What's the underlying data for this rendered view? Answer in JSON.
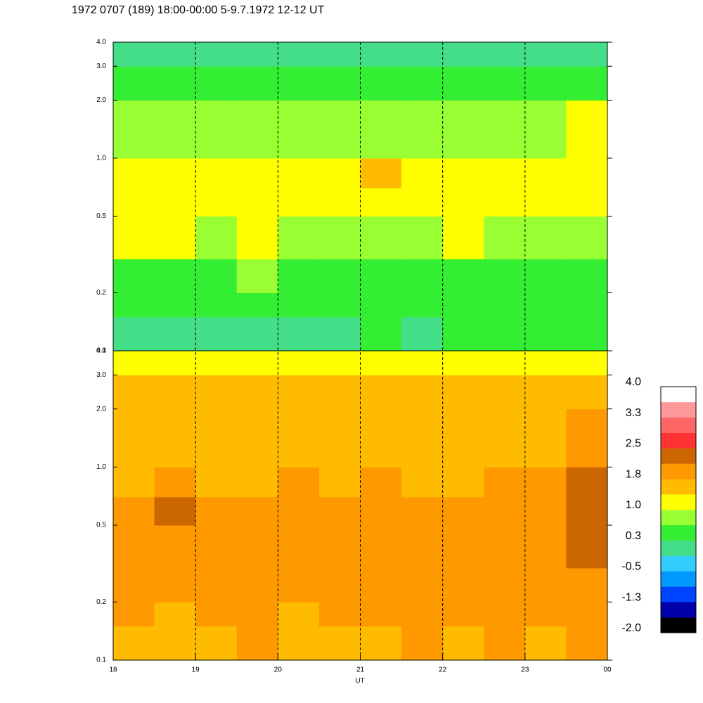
{
  "chart_data": {
    "type": "heatmap",
    "title": "1972 0707 (189) 18:00-00:00 5-9.7.1972  12-12 UT",
    "x_label": "UT",
    "xlim": [
      18,
      24
    ],
    "xticks": [
      18,
      19,
      20,
      21,
      22,
      23,
      {
        "value": 24,
        "label": "00"
      }
    ],
    "x_edges": [
      18,
      18.5,
      19,
      19.5,
      20,
      20.5,
      21,
      21.5,
      22,
      22.5,
      23,
      23.5,
      24
    ],
    "ylim": [
      0.1,
      4
    ],
    "yscale": "log",
    "yticks": [
      0.1,
      0.2,
      0.5,
      {
        "value": 1,
        "label": "1.0"
      },
      {
        "value": 2,
        "label": "2.0"
      },
      {
        "value": 3,
        "label": "3.0"
      },
      {
        "value": 4,
        "label": "4.0"
      }
    ],
    "y_edges": [
      0.1,
      0.15,
      0.2,
      0.3,
      0.5,
      0.7,
      1,
      2,
      3,
      4
    ],
    "grid": true,
    "panels": [
      {
        "z": [
          [
            0.2,
            0.1,
            0.2,
            0.1,
            0.0,
            0.2,
            0.3,
            0.2,
            0.3,
            0.4,
            0.3,
            0.4
          ],
          [
            0.4,
            0.3,
            0.4,
            0.3,
            0.4,
            0.4,
            0.5,
            0.4,
            0.4,
            0.5,
            0.4,
            0.5
          ],
          [
            0.6,
            0.5,
            0.5,
            0.7,
            0.5,
            0.4,
            0.5,
            0.5,
            0.6,
            0.6,
            0.5,
            0.6
          ],
          [
            1.1,
            1.0,
            0.9,
            1.1,
            0.8,
            0.7,
            0.8,
            0.9,
            1.0,
            0.9,
            0.8,
            0.9
          ],
          [
            1.2,
            1.1,
            1.0,
            1.2,
            1.1,
            1.1,
            1.2,
            1.1,
            1.1,
            1.0,
            1.0,
            1.1
          ],
          [
            1.3,
            1.1,
            1.0,
            1.2,
            1.1,
            1.3,
            1.4,
            1.2,
            1.1,
            1.1,
            1.0,
            1.2
          ],
          [
            0.8,
            0.9,
            0.8,
            0.8,
            0.7,
            0.8,
            0.7,
            0.8,
            0.7,
            0.7,
            0.8,
            1.0
          ],
          [
            0.4,
            0.5,
            0.4,
            0.5,
            0.3,
            0.4,
            0.5,
            0.4,
            0.3,
            0.3,
            0.4,
            0.5
          ],
          [
            0.1,
            0.2,
            0.1,
            0.2,
            0.0,
            0.1,
            0.2,
            0.1,
            0.0,
            0.1,
            0.1,
            0.2
          ]
        ]
      },
      {
        "z": [
          [
            1.7,
            1.6,
            1.7,
            1.8,
            1.7,
            1.6,
            1.7,
            1.8,
            1.7,
            2.1,
            1.7,
            1.8
          ],
          [
            1.8,
            1.7,
            1.8,
            1.8,
            1.7,
            1.8,
            1.8,
            1.9,
            1.8,
            2.0,
            1.8,
            1.9
          ],
          [
            1.8,
            1.9,
            1.8,
            1.8,
            1.8,
            1.9,
            1.8,
            1.9,
            1.8,
            2.0,
            1.9,
            2.0
          ],
          [
            1.9,
            2.0,
            1.9,
            1.8,
            1.9,
            2.0,
            1.9,
            2.0,
            1.9,
            2.1,
            2.0,
            2.3
          ],
          [
            1.9,
            2.2,
            1.9,
            1.9,
            1.9,
            2.0,
            1.9,
            1.9,
            1.8,
            2.0,
            2.1,
            2.4
          ],
          [
            1.7,
            1.8,
            1.7,
            1.7,
            1.8,
            1.7,
            1.8,
            1.7,
            1.7,
            1.9,
            1.9,
            2.3
          ],
          [
            1.6,
            1.6,
            1.5,
            1.6,
            1.6,
            1.5,
            1.6,
            1.6,
            1.5,
            1.7,
            1.6,
            1.8
          ],
          [
            1.5,
            1.5,
            1.4,
            1.5,
            1.5,
            1.4,
            1.5,
            1.5,
            1.4,
            1.6,
            1.5,
            1.6
          ],
          [
            1.1,
            1.0,
            1.1,
            1.1,
            1.0,
            1.1,
            1.0,
            1.1,
            1.0,
            1.1,
            1.0,
            1.1
          ]
        ]
      }
    ],
    "colorbar": {
      "clim": [
        -2,
        4
      ],
      "colors": [
        "#000000",
        "#0000aa",
        "#0044ff",
        "#0099ff",
        "#33ccff",
        "#44dd88",
        "#33ee33",
        "#99ff33",
        "#ffff00",
        "#ffbb00",
        "#ff9900",
        "#cc6600",
        "#ff3333",
        "#ff6666",
        "#ff9999",
        "#ffffff"
      ],
      "ticks": [
        {
          "value": -2,
          "label": "-2.0"
        },
        {
          "value": -1.25,
          "label": "-1.3"
        },
        -0.5,
        {
          "value": 0.25,
          "label": "0.3"
        },
        {
          "value": 1,
          "label": "1.0"
        },
        {
          "value": 1.75,
          "label": "1.8"
        },
        2.5,
        {
          "value": 3.25,
          "label": "3.3"
        },
        {
          "value": 4,
          "label": "4.0"
        }
      ]
    }
  }
}
